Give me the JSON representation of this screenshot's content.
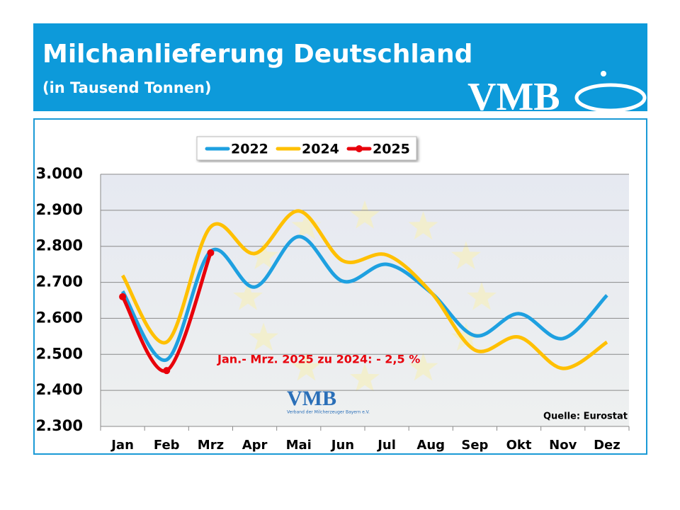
{
  "chart_data": {
    "type": "line",
    "title": "Milchanlieferung Deutschland",
    "subtitle": "(in Tausend Tonnen)",
    "logo": "VMB",
    "logo_caption": "Verband der Milcherzeuger Bayern e.V.",
    "annotation": "Jan.- Mrz. 2025 zu 2024: - 2,5 %",
    "source": "Quelle: Eurostat",
    "categories": [
      "Jan",
      "Feb",
      "Mrz",
      "Apr",
      "Mai",
      "Jun",
      "Jul",
      "Aug",
      "Sep",
      "Okt",
      "Nov",
      "Dez"
    ],
    "series": [
      {
        "name": "2022",
        "color": "#1ea0e0",
        "values": [
          2675,
          2485,
          2786,
          2687,
          2827,
          2703,
          2750,
          2672,
          2552,
          2613,
          2544,
          2664
        ]
      },
      {
        "name": "2024",
        "color": "#ffc000",
        "values": [
          2719,
          2534,
          2854,
          2780,
          2898,
          2760,
          2776,
          2673,
          2512,
          2548,
          2461,
          2534
        ]
      },
      {
        "name": "2025",
        "color": "#e8000b",
        "marker": true,
        "values": [
          2660,
          2455,
          2782,
          null,
          null,
          null,
          null,
          null,
          null,
          null,
          null,
          null
        ]
      }
    ],
    "ylim": [
      2300,
      3000
    ],
    "yticks": [
      {
        "value": 2300,
        "label": "2.300"
      },
      {
        "value": 2400,
        "label": "2.400"
      },
      {
        "value": 2500,
        "label": "2.500"
      },
      {
        "value": 2600,
        "label": "2.600"
      },
      {
        "value": 2700,
        "label": "2.700"
      },
      {
        "value": 2800,
        "label": "2.800"
      },
      {
        "value": 2900,
        "label": "2.900"
      },
      {
        "value": 3000,
        "label": "3.000"
      }
    ],
    "grid": true
  }
}
